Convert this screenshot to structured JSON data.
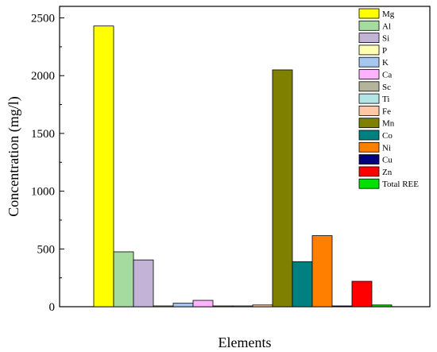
{
  "chart_data": {
    "type": "bar",
    "xlabel": "Elements",
    "ylabel": "Concentration (mg/l)",
    "ylim": [
      0,
      2600
    ],
    "yticks": [
      0,
      500,
      1000,
      1500,
      2000,
      2500
    ],
    "grid": false,
    "legend_position": "top-right",
    "series": [
      {
        "name": "Mg",
        "value": 2430,
        "color": "#FFFF00"
      },
      {
        "name": "Al",
        "value": 475,
        "color": "#A6DBA0"
      },
      {
        "name": "Si",
        "value": 405,
        "color": "#C2B3D7"
      },
      {
        "name": "P",
        "value": 5,
        "color": "#FFFFB3"
      },
      {
        "name": "K",
        "value": 30,
        "color": "#A6C8F0"
      },
      {
        "name": "Ca",
        "value": 55,
        "color": "#FFB3FF"
      },
      {
        "name": "Sc",
        "value": 2,
        "color": "#B4B49C"
      },
      {
        "name": "Ti",
        "value": 2,
        "color": "#B3E5E5"
      },
      {
        "name": "Fe",
        "value": 15,
        "color": "#FFC9A6"
      },
      {
        "name": "Mn",
        "value": 2050,
        "color": "#808000"
      },
      {
        "name": "Co",
        "value": 390,
        "color": "#008080"
      },
      {
        "name": "Ni",
        "value": 615,
        "color": "#FF8000"
      },
      {
        "name": "Cu",
        "value": 5,
        "color": "#000080"
      },
      {
        "name": "Zn",
        "value": 220,
        "color": "#FF0000"
      },
      {
        "name": "Total REE",
        "value": 15,
        "color": "#00E000"
      }
    ]
  }
}
